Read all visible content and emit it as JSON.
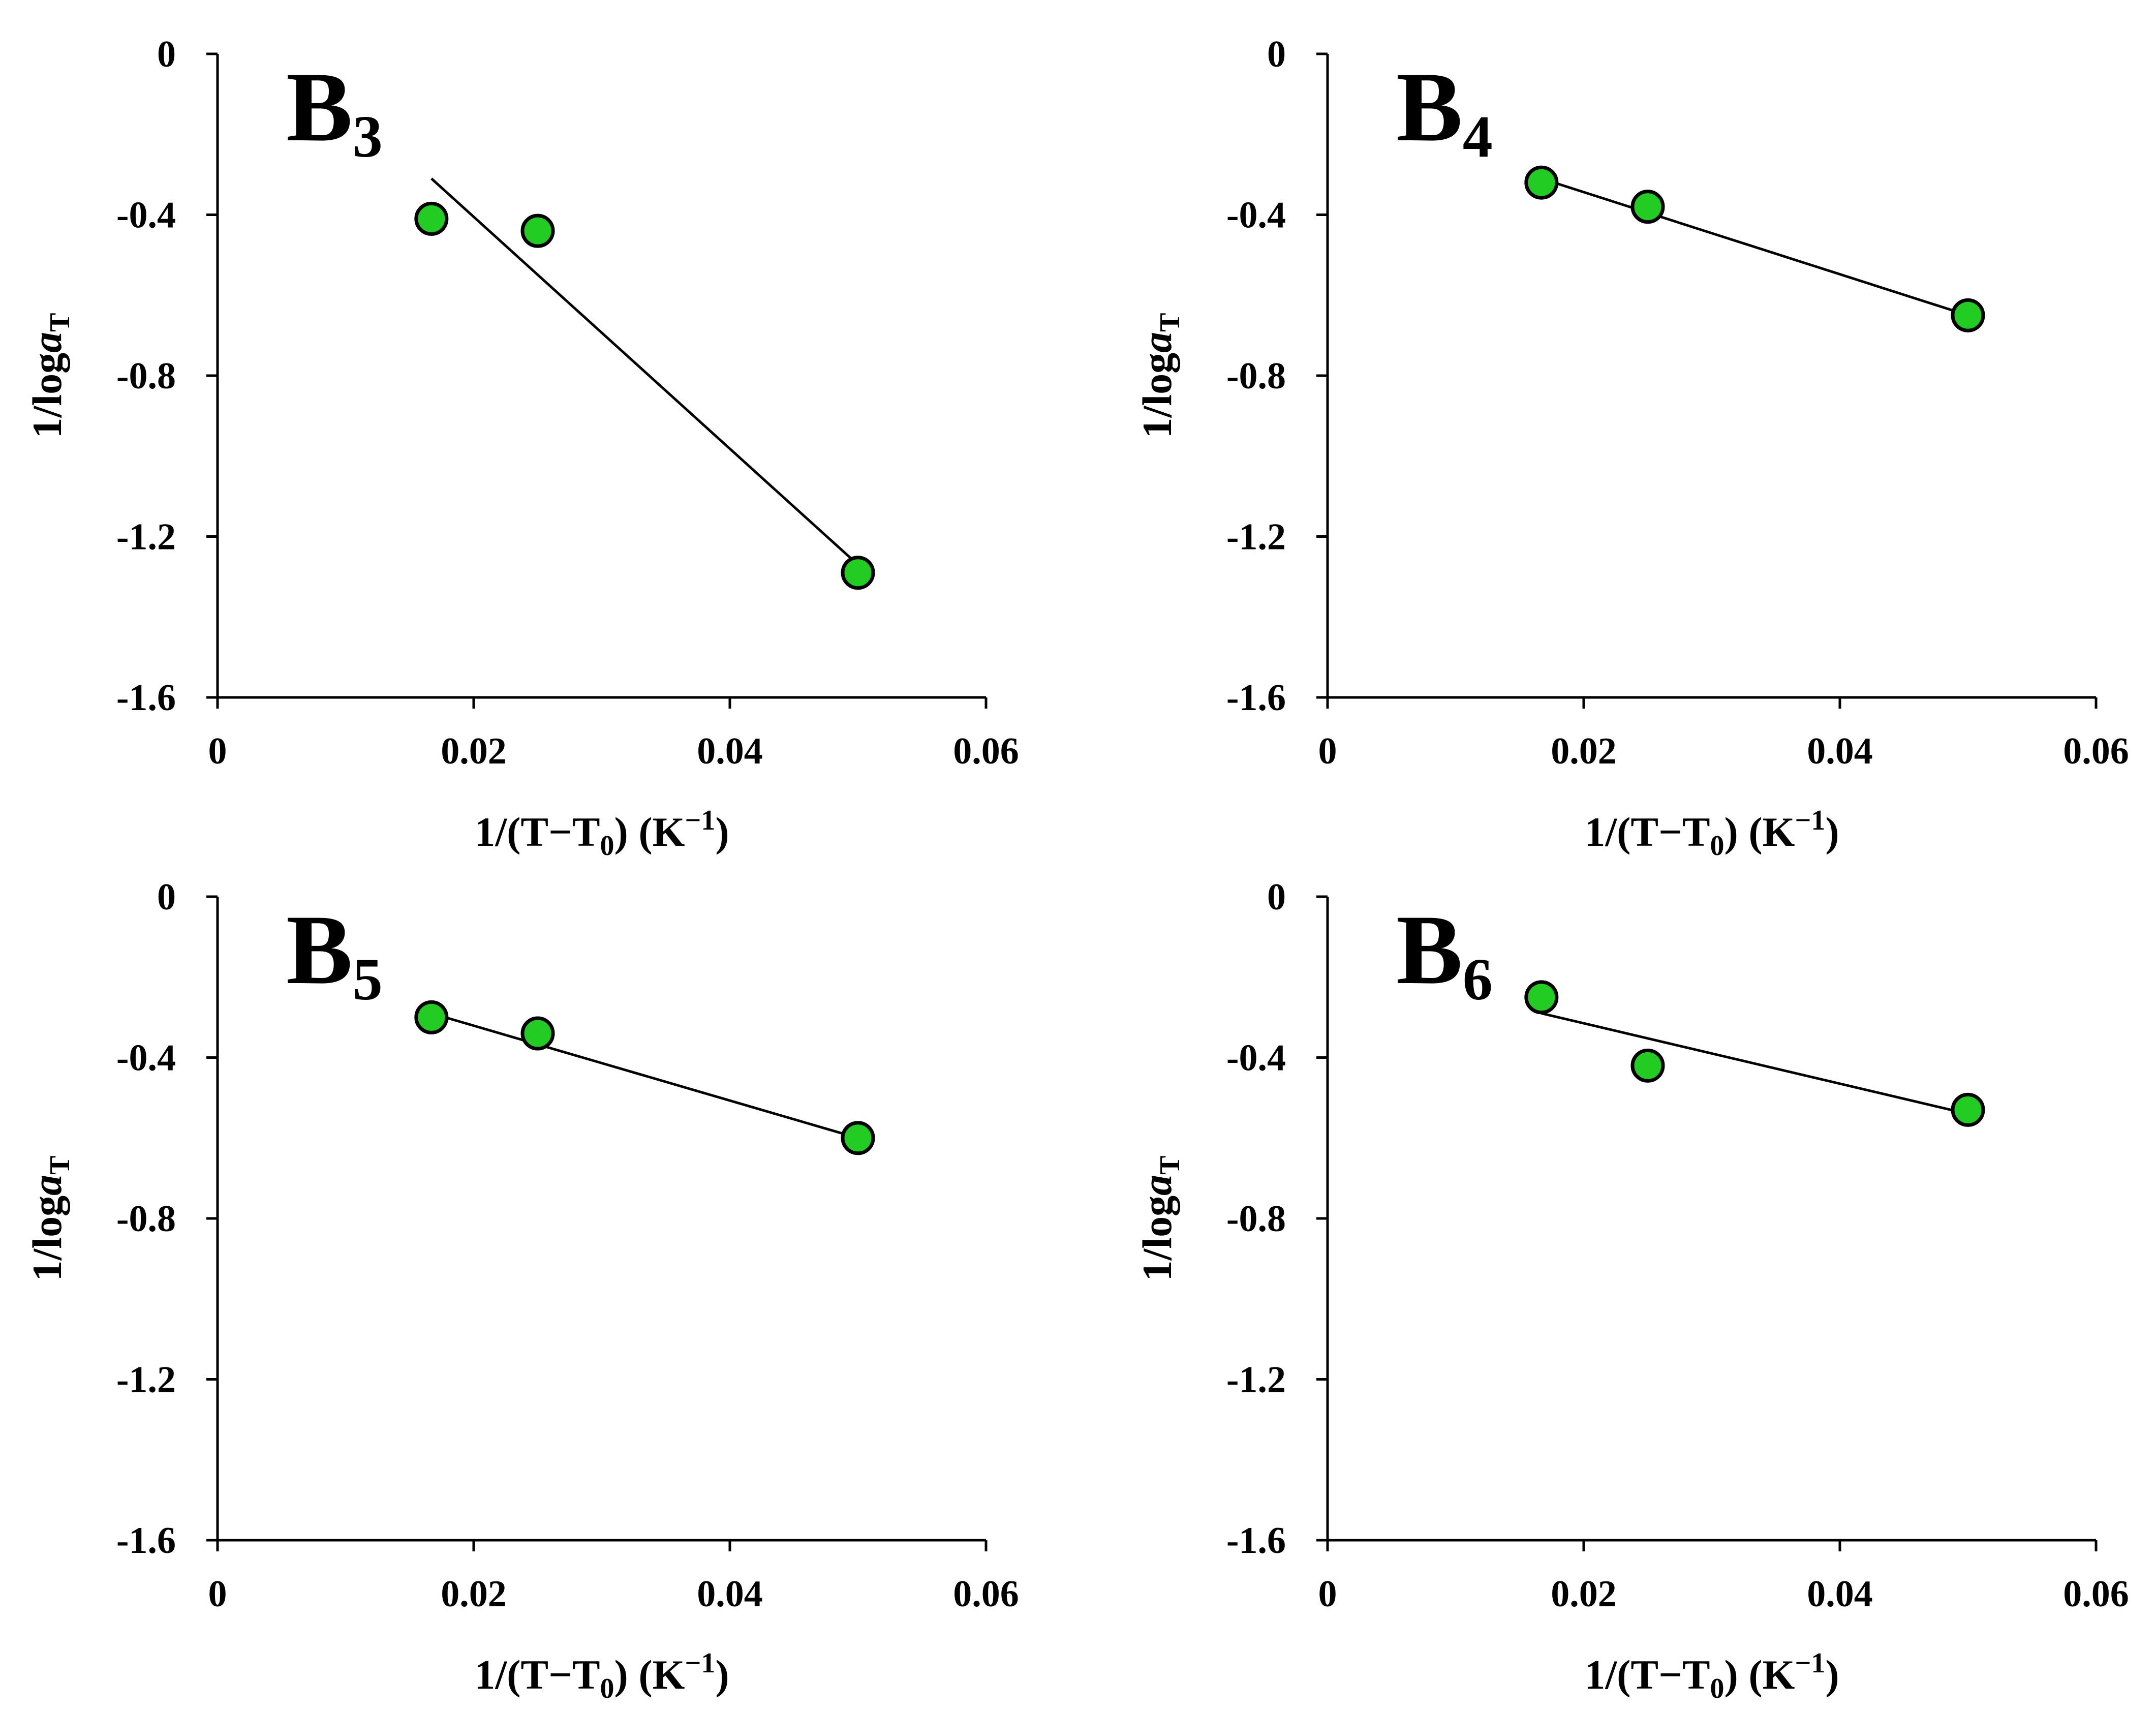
{
  "chart_data": [
    {
      "type": "scatter",
      "title": "B3",
      "panel_letter": "B",
      "panel_number": "3",
      "xlabel": {
        "prefix": "1/(T−T",
        "sub": "0",
        "middle": ") (K",
        "sup": "−1",
        "suffix": ")"
      },
      "ylabel": {
        "prefix": "1/log",
        "italic": "a",
        "sub": "T"
      },
      "xlim": [
        0,
        0.06
      ],
      "ylim": [
        -1.6,
        0
      ],
      "xticks": [
        0,
        0.02,
        0.04,
        0.06
      ],
      "xtick_labels": [
        "0",
        "0.02",
        "0.04",
        "0.06"
      ],
      "yticks": [
        0,
        -0.4,
        -0.8,
        -1.2,
        -1.6
      ],
      "ytick_labels": [
        "0",
        "-0.4",
        "-0.8",
        "-1.2",
        "-1.6"
      ],
      "points": [
        [
          0.0167,
          -0.41
        ],
        [
          0.025,
          -0.44
        ],
        [
          0.05,
          -1.29
        ]
      ],
      "fit": [
        [
          0.0167,
          -0.31
        ],
        [
          0.05,
          -1.27
        ]
      ],
      "marker_color": "#22cc22"
    },
    {
      "type": "scatter",
      "title": "B4",
      "panel_letter": "B",
      "panel_number": "4",
      "xlabel": {
        "prefix": "1/(T−T",
        "sub": "0",
        "middle": ") (K",
        "sup": "−1",
        "suffix": ")"
      },
      "ylabel": {
        "prefix": "1/log",
        "italic": "a",
        "sub": "T"
      },
      "xlim": [
        0,
        0.06
      ],
      "ylim": [
        -1.6,
        0
      ],
      "xticks": [
        0,
        0.02,
        0.04,
        0.06
      ],
      "xtick_labels": [
        "0",
        "0.02",
        "0.04",
        "0.06"
      ],
      "yticks": [
        0,
        -0.4,
        -0.8,
        -1.2,
        -1.6
      ],
      "ytick_labels": [
        "0",
        "-0.4",
        "-0.8",
        "-1.2",
        "-1.6"
      ],
      "points": [
        [
          0.0167,
          -0.32
        ],
        [
          0.025,
          -0.38
        ],
        [
          0.05,
          -0.65
        ]
      ],
      "fit": [
        [
          0.0167,
          -0.31
        ],
        [
          0.05,
          -0.65
        ]
      ],
      "marker_color": "#22cc22"
    },
    {
      "type": "scatter",
      "title": "B5",
      "panel_letter": "B",
      "panel_number": "5",
      "xlabel": {
        "prefix": "1/(T−T",
        "sub": "0",
        "middle": ") (K",
        "sup": "−1",
        "suffix": ")"
      },
      "ylabel": {
        "prefix": "1/log",
        "italic": "a",
        "sub": "T"
      },
      "xlim": [
        0,
        0.06
      ],
      "ylim": [
        -1.6,
        0
      ],
      "xticks": [
        0,
        0.02,
        0.04,
        0.06
      ],
      "xtick_labels": [
        "0",
        "0.02",
        "0.04",
        "0.06"
      ],
      "yticks": [
        0,
        -0.4,
        -0.8,
        -1.2,
        -1.6
      ],
      "ytick_labels": [
        "0",
        "-0.4",
        "-0.8",
        "-1.2",
        "-1.6"
      ],
      "points": [
        [
          0.0167,
          -0.3
        ],
        [
          0.025,
          -0.34
        ],
        [
          0.05,
          -0.6
        ]
      ],
      "fit": [
        [
          0.0167,
          -0.29
        ],
        [
          0.05,
          -0.6
        ]
      ],
      "marker_color": "#22cc22"
    },
    {
      "type": "scatter",
      "title": "B6",
      "panel_letter": "B",
      "panel_number": "6",
      "xlabel": {
        "prefix": "1/(T−T",
        "sub": "0",
        "middle": ") (K",
        "sup": "−1",
        "suffix": ")"
      },
      "ylabel": {
        "prefix": "1/log",
        "italic": "a",
        "sub": "T"
      },
      "xlim": [
        0,
        0.06
      ],
      "ylim": [
        -1.6,
        0
      ],
      "xticks": [
        0,
        0.02,
        0.04,
        0.06
      ],
      "xtick_labels": [
        "0",
        "0.02",
        "0.04",
        "0.06"
      ],
      "yticks": [
        0,
        -0.4,
        -0.8,
        -1.2,
        -1.6
      ],
      "ytick_labels": [
        "0",
        "-0.4",
        "-0.8",
        "-1.2",
        "-1.6"
      ],
      "points": [
        [
          0.0167,
          -0.25
        ],
        [
          0.025,
          -0.42
        ],
        [
          0.05,
          -0.53
        ]
      ],
      "fit": [
        [
          0.0167,
          -0.29
        ],
        [
          0.05,
          -0.54
        ]
      ],
      "marker_color": "#22cc22"
    }
  ]
}
